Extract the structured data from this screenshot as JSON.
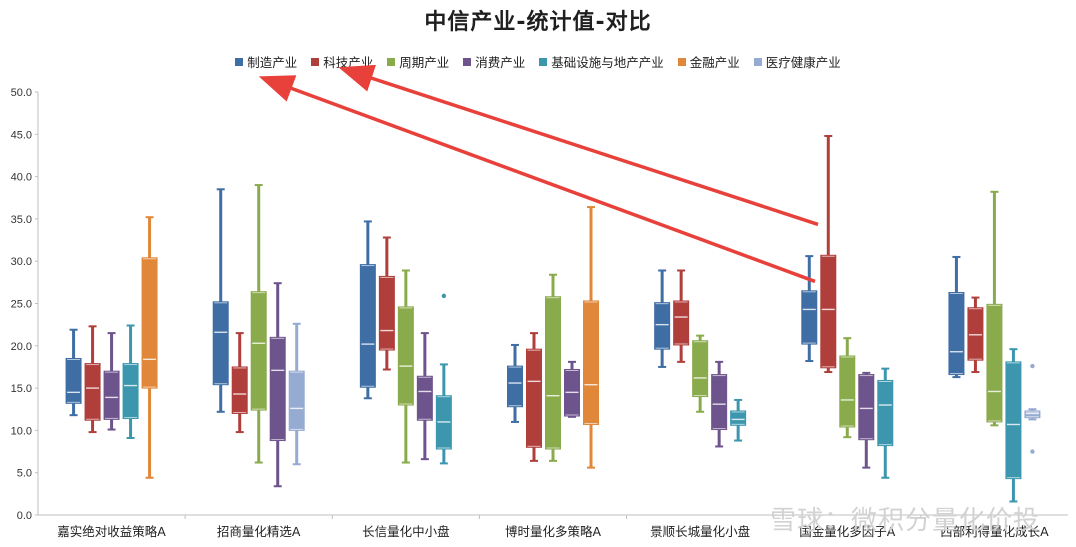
{
  "chart_data": {
    "type": "box",
    "title": "中信产业-统计值-对比",
    "categories": [
      "嘉实绝对收益策略A",
      "招商量化精选A",
      "长信量化中小盘",
      "博时量化多策略A",
      "景顺长城量化小盘",
      "国金量化多因子A",
      "西部利得量化成长A"
    ],
    "ylim": [
      0,
      50
    ],
    "yticks": [
      "0.0",
      "5.0",
      "10.0",
      "15.0",
      "20.0",
      "25.0",
      "30.0",
      "35.0",
      "40.0",
      "45.0",
      "50.0"
    ],
    "legend_position": "top",
    "series": [
      {
        "name": "制造产业",
        "color": "#3f6ea5",
        "boxes": [
          {
            "min": 11.8,
            "q1": 13.2,
            "median": 14.5,
            "q3": 18.5,
            "max": 21.9
          },
          {
            "min": 12.2,
            "q1": 15.4,
            "median": 21.6,
            "q3": 25.2,
            "max": 38.5
          },
          {
            "min": 13.8,
            "q1": 15.1,
            "median": 20.2,
            "q3": 29.6,
            "max": 34.7
          },
          {
            "min": 11.0,
            "q1": 12.8,
            "median": 15.6,
            "q3": 17.6,
            "max": 20.1
          },
          {
            "min": 17.5,
            "q1": 19.6,
            "median": 22.5,
            "q3": 25.1,
            "max": 28.9
          },
          {
            "min": 18.2,
            "q1": 20.2,
            "median": 24.3,
            "q3": 26.5,
            "max": 30.6
          },
          {
            "min": 16.3,
            "q1": 16.6,
            "median": 19.3,
            "q3": 26.3,
            "max": 30.5
          }
        ]
      },
      {
        "name": "科技产业",
        "color": "#b03f3c",
        "boxes": [
          {
            "min": 9.8,
            "q1": 11.2,
            "median": 15.0,
            "q3": 17.9,
            "max": 22.3
          },
          {
            "min": 9.8,
            "q1": 12.0,
            "median": 14.3,
            "q3": 17.5,
            "max": 21.5
          },
          {
            "min": 17.2,
            "q1": 19.5,
            "median": 21.8,
            "q3": 28.2,
            "max": 32.8
          },
          {
            "min": 6.4,
            "q1": 8.0,
            "median": 15.8,
            "q3": 19.6,
            "max": 21.5
          },
          {
            "min": 18.1,
            "q1": 20.1,
            "median": 23.4,
            "q3": 25.3,
            "max": 28.9
          },
          {
            "min": 16.9,
            "q1": 17.4,
            "median": 24.3,
            "q3": 30.7,
            "max": 44.8
          },
          {
            "min": 16.9,
            "q1": 18.3,
            "median": 21.3,
            "q3": 24.5,
            "max": 25.7
          }
        ]
      },
      {
        "name": "周期产业",
        "color": "#8aab4c",
        "boxes": [
          null,
          {
            "min": 6.2,
            "q1": 12.4,
            "median": 20.3,
            "q3": 26.4,
            "max": 39.0
          },
          {
            "min": 6.2,
            "q1": 13.0,
            "median": 17.6,
            "q3": 24.6,
            "max": 28.9
          },
          {
            "min": 6.4,
            "q1": 7.8,
            "median": 14.1,
            "q3": 25.8,
            "max": 28.4
          },
          {
            "min": 12.2,
            "q1": 14.0,
            "median": 16.2,
            "q3": 20.6,
            "max": 21.2
          },
          {
            "min": 9.2,
            "q1": 10.4,
            "median": 13.6,
            "q3": 18.8,
            "max": 20.9
          },
          {
            "min": 10.6,
            "q1": 11.0,
            "median": 14.6,
            "q3": 24.9,
            "max": 38.2
          }
        ]
      },
      {
        "name": "消费产业",
        "color": "#6e548c",
        "boxes": [
          {
            "min": 10.1,
            "q1": 11.3,
            "median": 13.9,
            "q3": 17.0,
            "max": 21.5
          },
          {
            "min": 3.4,
            "q1": 8.8,
            "median": 17.1,
            "q3": 21.0,
            "max": 27.4
          },
          {
            "min": 6.6,
            "q1": 11.2,
            "median": 14.6,
            "q3": 16.4,
            "max": 21.5
          },
          {
            "min": 11.6,
            "q1": 11.7,
            "median": 14.5,
            "q3": 17.2,
            "max": 18.1
          },
          {
            "min": 8.1,
            "q1": 10.1,
            "median": 13.1,
            "q3": 16.6,
            "max": 18.1
          },
          {
            "min": 5.6,
            "q1": 8.9,
            "median": 12.6,
            "q3": 16.6,
            "max": 16.8
          },
          null
        ]
      },
      {
        "name": "基础设施与地产产业",
        "color": "#3c97ae",
        "boxes": [
          {
            "min": 9.1,
            "q1": 11.4,
            "median": 15.3,
            "q3": 17.9,
            "max": 22.4
          },
          null,
          {
            "min": 6.1,
            "q1": 7.8,
            "median": 11.0,
            "q3": 14.1,
            "max": 17.8
          },
          null,
          {
            "min": 8.8,
            "q1": 10.6,
            "median": 11.3,
            "q3": 12.3,
            "max": 13.6
          },
          {
            "min": 4.4,
            "q1": 8.2,
            "median": 13.0,
            "q3": 15.9,
            "max": 17.3
          },
          {
            "min": 1.6,
            "q1": 4.3,
            "median": 10.7,
            "q3": 18.1,
            "max": 19.6
          }
        ]
      },
      {
        "name": "金融产业",
        "color": "#e0873a",
        "boxes": [
          {
            "min": 4.4,
            "q1": 15.0,
            "median": 18.4,
            "q3": 30.4,
            "max": 35.2
          },
          null,
          null,
          {
            "min": 5.6,
            "q1": 10.7,
            "median": 15.4,
            "q3": 25.3,
            "max": 36.4
          },
          null,
          null,
          null
        ]
      },
      {
        "name": "医疗健康产业",
        "color": "#96abd1",
        "boxes": [
          null,
          {
            "min": 6.0,
            "q1": 10.0,
            "median": 12.6,
            "q3": 17.0,
            "max": 22.6
          },
          null,
          null,
          null,
          null,
          {
            "min": 11.3,
            "q1": 11.5,
            "median": 12.0,
            "q3": 12.3,
            "max": 12.5
          }
        ]
      }
    ],
    "outliers": [
      {
        "series": "基础设施与地产产业",
        "category": "长信量化中小盘",
        "value": 25.9
      },
      {
        "series": "医疗健康产业",
        "category": "西部利得量化成长A",
        "value": 17.6
      },
      {
        "series": "医疗健康产业",
        "category": "西部利得量化成长A",
        "value": 7.5
      }
    ]
  },
  "watermark": "雪球：微积分量化价投"
}
